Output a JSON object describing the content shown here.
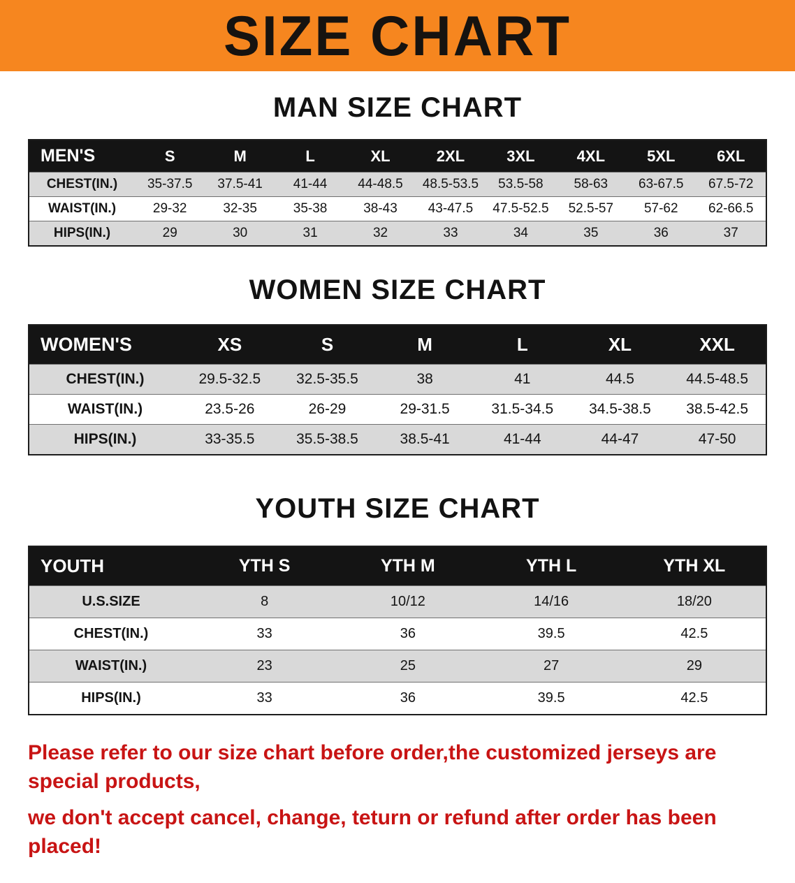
{
  "banner": {
    "title": "SIZE CHART"
  },
  "colors": {
    "banner_bg": "#f6861f",
    "header_bg": "#141414",
    "stripe": "#d9d9d9",
    "notice_text": "#c81414"
  },
  "sections": [
    {
      "id": "men",
      "heading": "MAN SIZE CHART",
      "table": {
        "header": [
          "MEN'S",
          "S",
          "M",
          "L",
          "XL",
          "2XL",
          "3XL",
          "4XL",
          "5XL",
          "6XL"
        ],
        "rows": [
          [
            "CHEST(IN.)",
            "35-37.5",
            "37.5-41",
            "41-44",
            "44-48.5",
            "48.5-53.5",
            "53.5-58",
            "58-63",
            "63-67.5",
            "67.5-72"
          ],
          [
            "WAIST(IN.)",
            "29-32",
            "32-35",
            "35-38",
            "38-43",
            "43-47.5",
            "47.5-52.5",
            "52.5-57",
            "57-62",
            "62-66.5"
          ],
          [
            "HIPS(IN.)",
            "29",
            "30",
            "31",
            "32",
            "33",
            "34",
            "35",
            "36",
            "37"
          ]
        ]
      }
    },
    {
      "id": "women",
      "heading": "WOMEN SIZE CHART",
      "table": {
        "header": [
          "WOMEN'S",
          "XS",
          "S",
          "M",
          "L",
          "XL",
          "XXL"
        ],
        "rows": [
          [
            "CHEST(IN.)",
            "29.5-32.5",
            "32.5-35.5",
            "38",
            "41",
            "44.5",
            "44.5-48.5"
          ],
          [
            "WAIST(IN.)",
            "23.5-26",
            "26-29",
            "29-31.5",
            "31.5-34.5",
            "34.5-38.5",
            "38.5-42.5"
          ],
          [
            "HIPS(IN.)",
            "33-35.5",
            "35.5-38.5",
            "38.5-41",
            "41-44",
            "44-47",
            "47-50"
          ]
        ]
      }
    },
    {
      "id": "youth",
      "heading": "YOUTH SIZE CHART",
      "table": {
        "header": [
          "YOUTH",
          "YTH S",
          "YTH M",
          "YTH L",
          "YTH XL"
        ],
        "rows": [
          [
            "U.S.SIZE",
            "8",
            "10/12",
            "14/16",
            "18/20"
          ],
          [
            "CHEST(IN.)",
            "33",
            "36",
            "39.5",
            "42.5"
          ],
          [
            "WAIST(IN.)",
            "23",
            "25",
            "27",
            "29"
          ],
          [
            "HIPS(IN.)",
            "33",
            "36",
            "39.5",
            "42.5"
          ]
        ]
      }
    }
  ],
  "footer": {
    "line1": "Please refer to our size chart before order,the customized jerseys are special products,",
    "line2": "we don't accept cancel, change, teturn or refund after order has been placed!"
  }
}
